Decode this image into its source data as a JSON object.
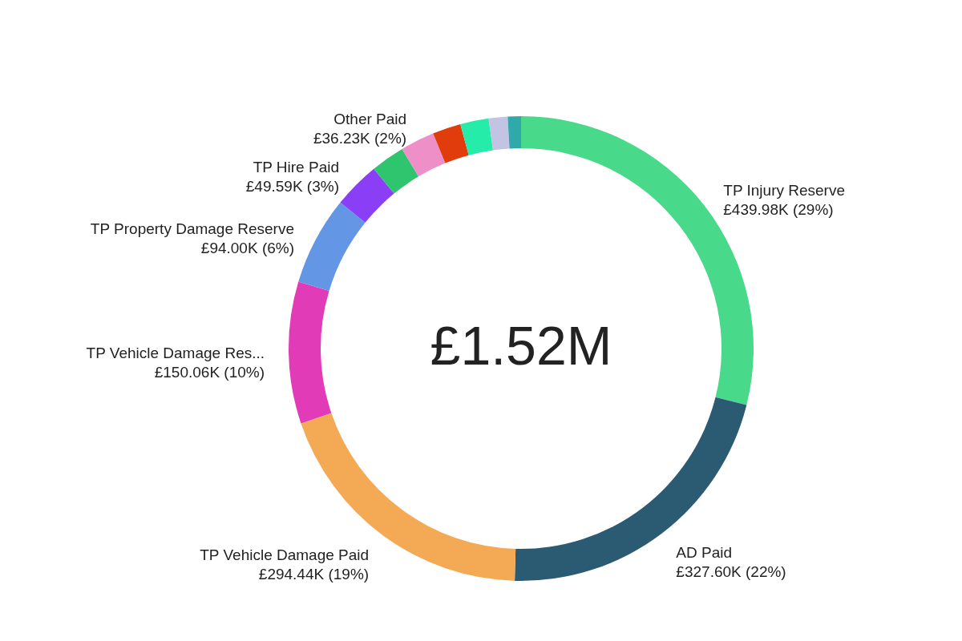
{
  "chart_data": {
    "type": "donut",
    "categories": [
      "TP Injury Reserve",
      "AD Paid",
      "TP Vehicle Damage Paid",
      "TP Vehicle Damage Res...",
      "TP Property Damage Reserve",
      "TP Hire Paid",
      null,
      "Other Paid",
      null,
      null,
      null,
      null
    ],
    "values": [
      439980,
      327600,
      294440,
      150060,
      94000,
      49590,
      36000,
      36230,
      30000,
      30000,
      20000,
      14000
    ],
    "value_labels": [
      "£439.98K (29%)",
      "£327.60K (22%)",
      "£294.44K (19%)",
      "£150.06K (10%)",
      "£94.00K (6%)",
      "£49.59K (3%)",
      null,
      "£36.23K (2%)",
      null,
      null,
      null,
      null
    ],
    "colors": [
      "#48d98a",
      "#2b5a73",
      "#f4a955",
      "#e23bb8",
      "#6496e6",
      "#8a3ff7",
      "#2fc46e",
      "#ee8fc8",
      "#e03c0c",
      "#26ecaa",
      "#c3c3e3",
      "#30a9ab"
    ],
    "annotations": [
      "£1.52M"
    ],
    "legend": false
  }
}
